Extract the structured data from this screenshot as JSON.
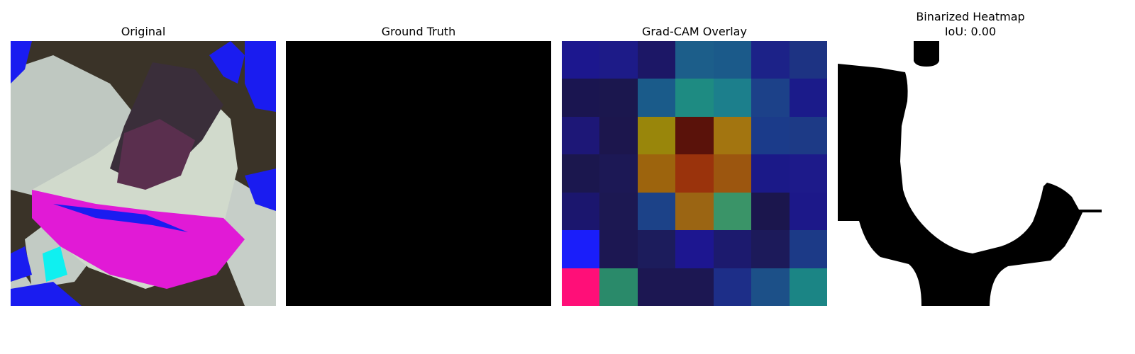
{
  "panels": [
    {
      "title": "Original"
    },
    {
      "title": "Ground Truth"
    },
    {
      "title": "Grad-CAM Overlay"
    },
    {
      "title_lines": [
        "Binarized Heatmap",
        "IoU: 0.00"
      ]
    }
  ],
  "colors": {
    "original_bg": "#3a3328",
    "leaf_grey": "#c4cdc6",
    "magenta": "#e11ad6",
    "blue": "#1a1cf0",
    "cyan": "#0ff0f0",
    "ground_truth": "#000000",
    "binarized_fg": "#000000",
    "binarized_bg": "#ffffff"
  },
  "gradcam": {
    "rows": 7,
    "cols": 7,
    "cells": [
      [
        "#1c178e",
        "#1d1b88",
        "#1c1766",
        "#1c5e8a",
        "#1b5a8a",
        "#1c2288",
        "#1d3383"
      ],
      [
        "#1a1550",
        "#1b174e",
        "#1a5b8a",
        "#1e8b82",
        "#1c7f8c",
        "#1c4189",
        "#1b1b8a"
      ],
      [
        "#1d1777",
        "#1c164d",
        "#99860b",
        "#5a120a",
        "#a37510",
        "#1b3b8a",
        "#1d3a86"
      ],
      [
        "#1b174e",
        "#1c1855",
        "#9d640d",
        "#9a330c",
        "#9c560f",
        "#1b1988",
        "#1d1a8a"
      ],
      [
        "#1b166e",
        "#1c1852",
        "#1c4288",
        "#9b6513",
        "#3a9468",
        "#1b164d",
        "#1c1889"
      ],
      [
        "#1a1efa",
        "#1c1752",
        "#1c1c5c",
        "#1d1690",
        "#1c1a6e",
        "#1c1a5a",
        "#1c3a87"
      ],
      [
        "#ff0f78",
        "#2a8a6a",
        "#1c1752",
        "#1c1752",
        "#1d2e88",
        "#1c5088",
        "#1b8585"
      ]
    ]
  }
}
